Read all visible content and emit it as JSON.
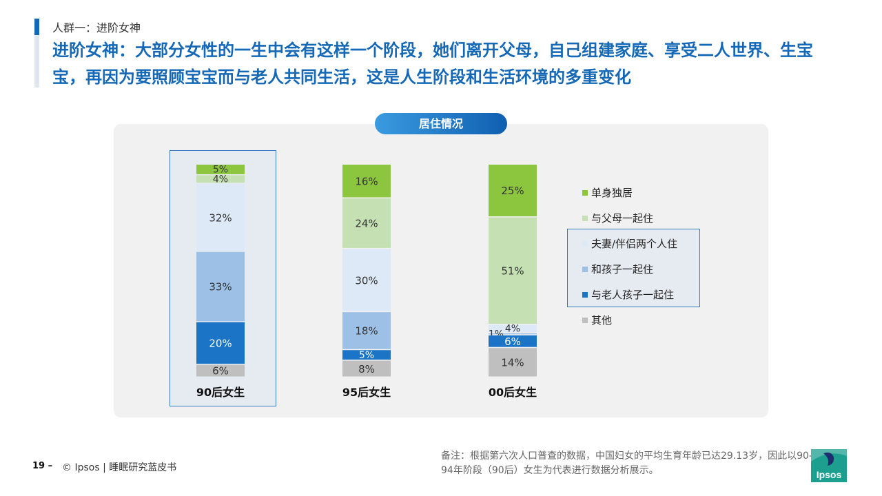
{
  "header": {
    "section": "人群一：进阶女神",
    "headline": "进阶女神：大部分女性的一生中会有这样一个阶段，她们离开父母，自己组建家庭、享受二人世界、生宝宝，再因为要照顾宝宝而与老人共同生活，这是人生阶段和生活环境的多重变化"
  },
  "colors": {
    "brand_blue": "#1568b5",
    "accent_bar_top": "#1568b5",
    "accent_bar_rest": "#dfe6ef",
    "pill_gradient": [
      "#3a9be0",
      "#0f5fb0"
    ]
  },
  "chart_data": {
    "type": "bar",
    "stacked": true,
    "title": "居住情况",
    "categories": [
      "90后女生",
      "95后女生",
      "00后女生"
    ],
    "highlighted_category": "90后女生",
    "value_unit": "%",
    "series": [
      {
        "name": "单身独居",
        "color": "#8cc63f",
        "values": [
          5,
          16,
          25
        ]
      },
      {
        "name": "与父母一起住",
        "color": "#c5e0b3",
        "values": [
          4,
          24,
          51
        ]
      },
      {
        "name": "夫妻/伴侣两个人住",
        "color": "#dde9f6",
        "values": [
          32,
          30,
          4
        ]
      },
      {
        "name": "和孩子一起住",
        "color": "#9dc1e6",
        "values": [
          33,
          18,
          1
        ]
      },
      {
        "name": "与老人孩子一起住",
        "color": "#1b74c6",
        "values": [
          20,
          5,
          6
        ]
      },
      {
        "name": "其他",
        "color": "#bfbfbf",
        "values": [
          6,
          8,
          14
        ]
      }
    ],
    "highlighted_legend": [
      "夫妻/伴侣两个人住",
      "和孩子一起住",
      "与老人孩子一起住"
    ],
    "legend_position": "right"
  },
  "footer": {
    "page_number": "19 –",
    "copyright": "© Ipsos | 睡眠研究蓝皮书",
    "note": "备注：根据第六次人口普查的数据，中国妇女的平均生育年龄已达29.13岁，因此以90-94年阶段（90后）女生为代表进行数据分析展示。",
    "logo_text": "Ipsos",
    "logo_color": "#1c9f8f"
  }
}
